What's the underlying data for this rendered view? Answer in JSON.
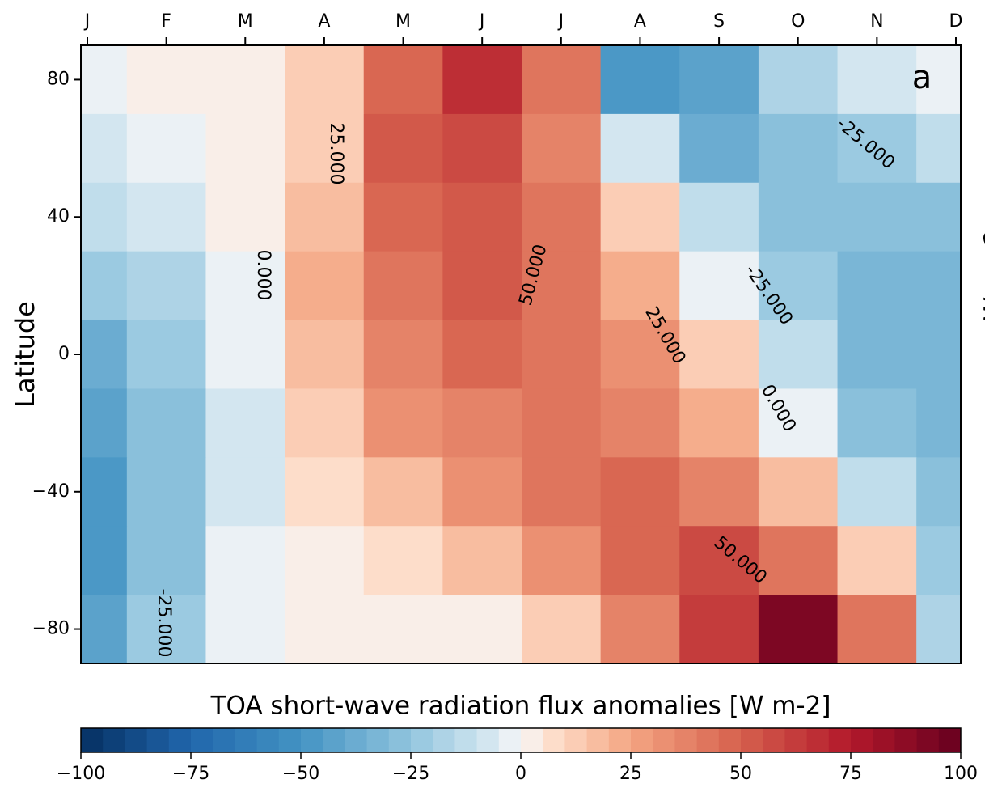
{
  "chart_data": {
    "type": "contour",
    "title": "TOA short-wave radiation flux anomalies [W m-2]",
    "ylabel": "Latitude",
    "colorbar_label": "W m−2",
    "panel_label": "a",
    "categories": [
      "J",
      "F",
      "M",
      "A",
      "M",
      "J",
      "J",
      "A",
      "S",
      "O",
      "N",
      "D"
    ],
    "y": [
      80,
      60,
      40,
      20,
      0,
      -20,
      -40,
      -60,
      -80
    ],
    "ylim": [
      -90,
      90
    ],
    "yticks": [
      80,
      40,
      0,
      {
        "value": -40,
        "label": "−40"
      },
      {
        "value": -80,
        "label": "−80"
      }
    ],
    "z": [
      [
        -3,
        0,
        3,
        10,
        45,
        65,
        40,
        -50,
        -45,
        -20,
        -10,
        -5
      ],
      [
        -8,
        -5,
        2,
        12,
        50,
        55,
        35,
        -10,
        -40,
        -30,
        -25,
        -15
      ],
      [
        -15,
        -10,
        0,
        15,
        45,
        50,
        40,
        10,
        -15,
        -30,
        -30,
        -30
      ],
      [
        -25,
        -20,
        -3,
        20,
        40,
        50,
        40,
        20,
        -5,
        -25,
        -35,
        -35
      ],
      [
        -40,
        -25,
        -5,
        15,
        35,
        45,
        40,
        30,
        10,
        -15,
        -35,
        -35
      ],
      [
        -45,
        -30,
        -10,
        10,
        30,
        35,
        40,
        35,
        20,
        -5,
        -30,
        -35
      ],
      [
        -50,
        -30,
        -10,
        5,
        15,
        30,
        40,
        45,
        35,
        15,
        -15,
        -30
      ],
      [
        -50,
        -30,
        -5,
        0,
        5,
        15,
        30,
        45,
        55,
        40,
        10,
        -25
      ],
      [
        -45,
        -25,
        -5,
        0,
        0,
        0,
        10,
        35,
        60,
        90,
        40,
        -20
      ]
    ],
    "clim": [
      -100,
      100
    ],
    "cticks": [
      {
        "value": -100,
        "label": "−100"
      },
      {
        "value": -75,
        "label": "−75"
      },
      {
        "value": -50,
        "label": "−50"
      },
      {
        "value": -25,
        "label": "−25"
      },
      0,
      25,
      50,
      75,
      100
    ],
    "contour_levels": [
      {
        "value": -25,
        "label": "-25.000"
      },
      {
        "value": 0,
        "label": "0.000"
      },
      {
        "value": 25,
        "label": "25.000"
      },
      {
        "value": 50,
        "label": "50.000"
      }
    ],
    "colormap": "RdBu_r"
  }
}
